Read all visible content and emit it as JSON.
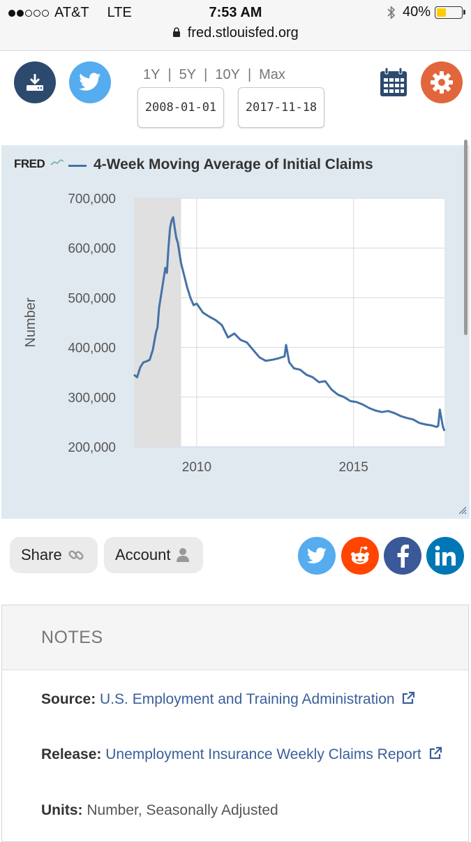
{
  "status_bar": {
    "carrier": "AT&T",
    "network": "LTE",
    "time": "7:53 AM",
    "battery": "40%",
    "url": "fred.stlouisfed.org"
  },
  "toolbar": {
    "ranges": [
      "1Y",
      "5Y",
      "10Y",
      "Max"
    ],
    "separator": "|",
    "start_date": "2008-01-01",
    "end_date": "2017-11-18"
  },
  "chart": {
    "brand": "FRED",
    "series_color": "#4572a7",
    "recession_color": "#e0e0e0"
  },
  "chart_data": {
    "type": "line",
    "title": "4-Week Moving Average of Initial Claims",
    "ylabel": "Number",
    "xlabel": "",
    "ylim": [
      200000,
      700000
    ],
    "xlim": [
      2008.0,
      2017.9
    ],
    "y_ticks": [
      "700,000",
      "600,000",
      "500,000",
      "400,000",
      "300,000",
      "200,000"
    ],
    "x_ticks": [
      "2010",
      "2015"
    ],
    "recession_shading": [
      2008.0,
      2009.5
    ],
    "series": [
      {
        "name": "4-Week Moving Average of Initial Claims",
        "x": [
          2008.0,
          2008.1,
          2008.2,
          2008.3,
          2008.4,
          2008.5,
          2008.6,
          2008.7,
          2008.75,
          2008.8,
          2008.9,
          2009.0,
          2009.05,
          2009.1,
          2009.15,
          2009.2,
          2009.25,
          2009.3,
          2009.35,
          2009.4,
          2009.5,
          2009.6,
          2009.7,
          2009.8,
          2009.9,
          2010.0,
          2010.2,
          2010.4,
          2010.6,
          2010.8,
          2011.0,
          2011.2,
          2011.4,
          2011.6,
          2011.8,
          2012.0,
          2012.2,
          2012.4,
          2012.6,
          2012.8,
          2012.85,
          2012.95,
          2013.1,
          2013.3,
          2013.5,
          2013.7,
          2013.9,
          2014.1,
          2014.3,
          2014.5,
          2014.7,
          2014.9,
          2015.1,
          2015.3,
          2015.5,
          2015.7,
          2015.9,
          2016.1,
          2016.3,
          2016.5,
          2016.7,
          2016.9,
          2017.1,
          2017.3,
          2017.5,
          2017.65,
          2017.7,
          2017.75,
          2017.85,
          2017.9
        ],
        "values": [
          345000,
          340000,
          360000,
          370000,
          372000,
          375000,
          395000,
          430000,
          440000,
          480000,
          520000,
          560000,
          550000,
          600000,
          640000,
          655000,
          662000,
          640000,
          620000,
          610000,
          570000,
          545000,
          520000,
          500000,
          485000,
          488000,
          470000,
          462000,
          455000,
          445000,
          420000,
          428000,
          415000,
          410000,
          395000,
          380000,
          373000,
          375000,
          378000,
          382000,
          405000,
          370000,
          358000,
          355000,
          345000,
          340000,
          330000,
          332000,
          315000,
          305000,
          300000,
          292000,
          290000,
          285000,
          278000,
          273000,
          270000,
          272000,
          268000,
          262000,
          258000,
          255000,
          248000,
          245000,
          243000,
          240000,
          242000,
          275000,
          240000,
          232000
        ]
      }
    ]
  },
  "actions": {
    "share_label": "Share",
    "account_label": "Account"
  },
  "notes": {
    "title": "NOTES",
    "source_label": "Source:",
    "source_value": "U.S. Employment and Training Administration",
    "release_label": "Release:",
    "release_value": "Unemployment Insurance Weekly Claims Report",
    "units_label": "Units:",
    "units_value": "Number, Seasonally Adjusted"
  }
}
